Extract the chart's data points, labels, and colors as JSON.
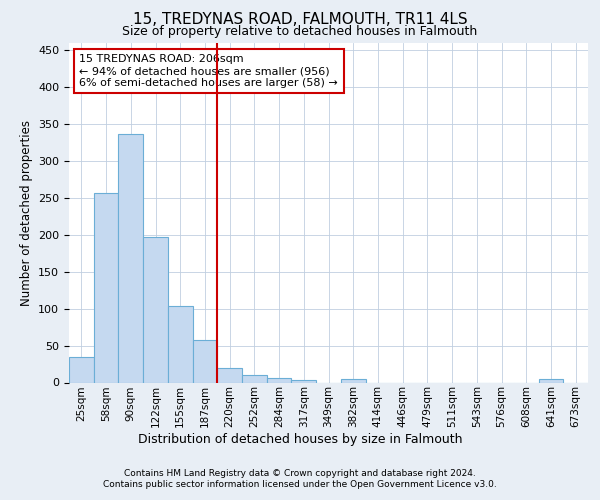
{
  "title1": "15, TREDYNAS ROAD, FALMOUTH, TR11 4LS",
  "title2": "Size of property relative to detached houses in Falmouth",
  "xlabel": "Distribution of detached houses by size in Falmouth",
  "ylabel": "Number of detached properties",
  "bin_labels": [
    "25sqm",
    "58sqm",
    "90sqm",
    "122sqm",
    "155sqm",
    "187sqm",
    "220sqm",
    "252sqm",
    "284sqm",
    "317sqm",
    "349sqm",
    "382sqm",
    "414sqm",
    "446sqm",
    "479sqm",
    "511sqm",
    "543sqm",
    "576sqm",
    "608sqm",
    "641sqm",
    "673sqm"
  ],
  "bar_values": [
    35,
    256,
    336,
    197,
    104,
    57,
    19,
    10,
    6,
    3,
    0,
    5,
    0,
    0,
    0,
    0,
    0,
    0,
    0,
    5,
    0
  ],
  "bar_color": "#c5d9f0",
  "bar_edgecolor": "#6baed6",
  "vline_x": 5.5,
  "vline_color": "#cc0000",
  "annotation_text": "15 TREDYNAS ROAD: 206sqm\n← 94% of detached houses are smaller (956)\n6% of semi-detached houses are larger (58) →",
  "annotation_box_color": "#cc0000",
  "ylim": [
    0,
    460
  ],
  "yticks": [
    0,
    50,
    100,
    150,
    200,
    250,
    300,
    350,
    400,
    450
  ],
  "footer_line1": "Contains HM Land Registry data © Crown copyright and database right 2024.",
  "footer_line2": "Contains public sector information licensed under the Open Government Licence v3.0.",
  "background_color": "#e8eef5",
  "plot_bg_color": "#ffffff",
  "grid_color": "#c0cfe0"
}
